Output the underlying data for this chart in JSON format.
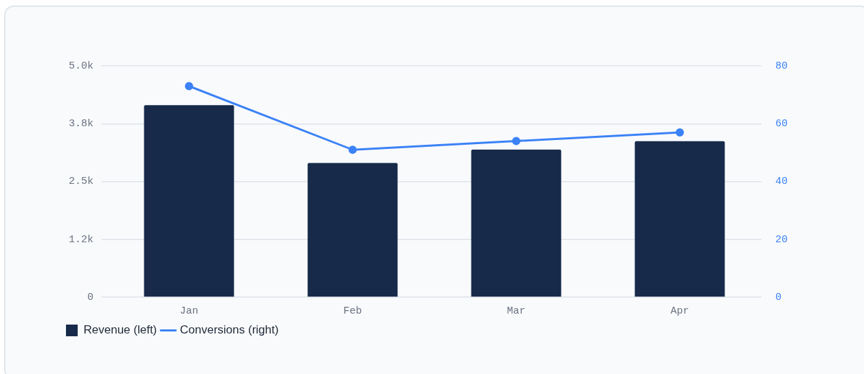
{
  "chart_data": {
    "type": "bar",
    "categories": [
      "Jan",
      "Feb",
      "Mar",
      "Apr"
    ],
    "series": [
      {
        "name": "Revenue (left)",
        "color": "#172a4a",
        "values": [
          4150,
          2900,
          3190,
          3370
        ]
      },
      {
        "name": "Conversions (right)",
        "type": "line",
        "axis": "y2",
        "color": "#3b82f6",
        "values": [
          73,
          51,
          54,
          57
        ]
      }
    ],
    "ylim": [
      0,
      5000
    ],
    "yticks": [
      0,
      {
        "value": 1250,
        "label": "1.2k"
      },
      {
        "value": 2500,
        "label": "2.5k"
      },
      {
        "value": 3750,
        "label": "3.8k"
      },
      {
        "value": 5000,
        "label": "5.0k"
      }
    ],
    "y2lim": [
      0,
      80
    ],
    "y2ticks": [
      0,
      20,
      40,
      60,
      80
    ],
    "grid": "y",
    "legend": "bottom left",
    "marker": "circle",
    "line_style": "solid"
  }
}
